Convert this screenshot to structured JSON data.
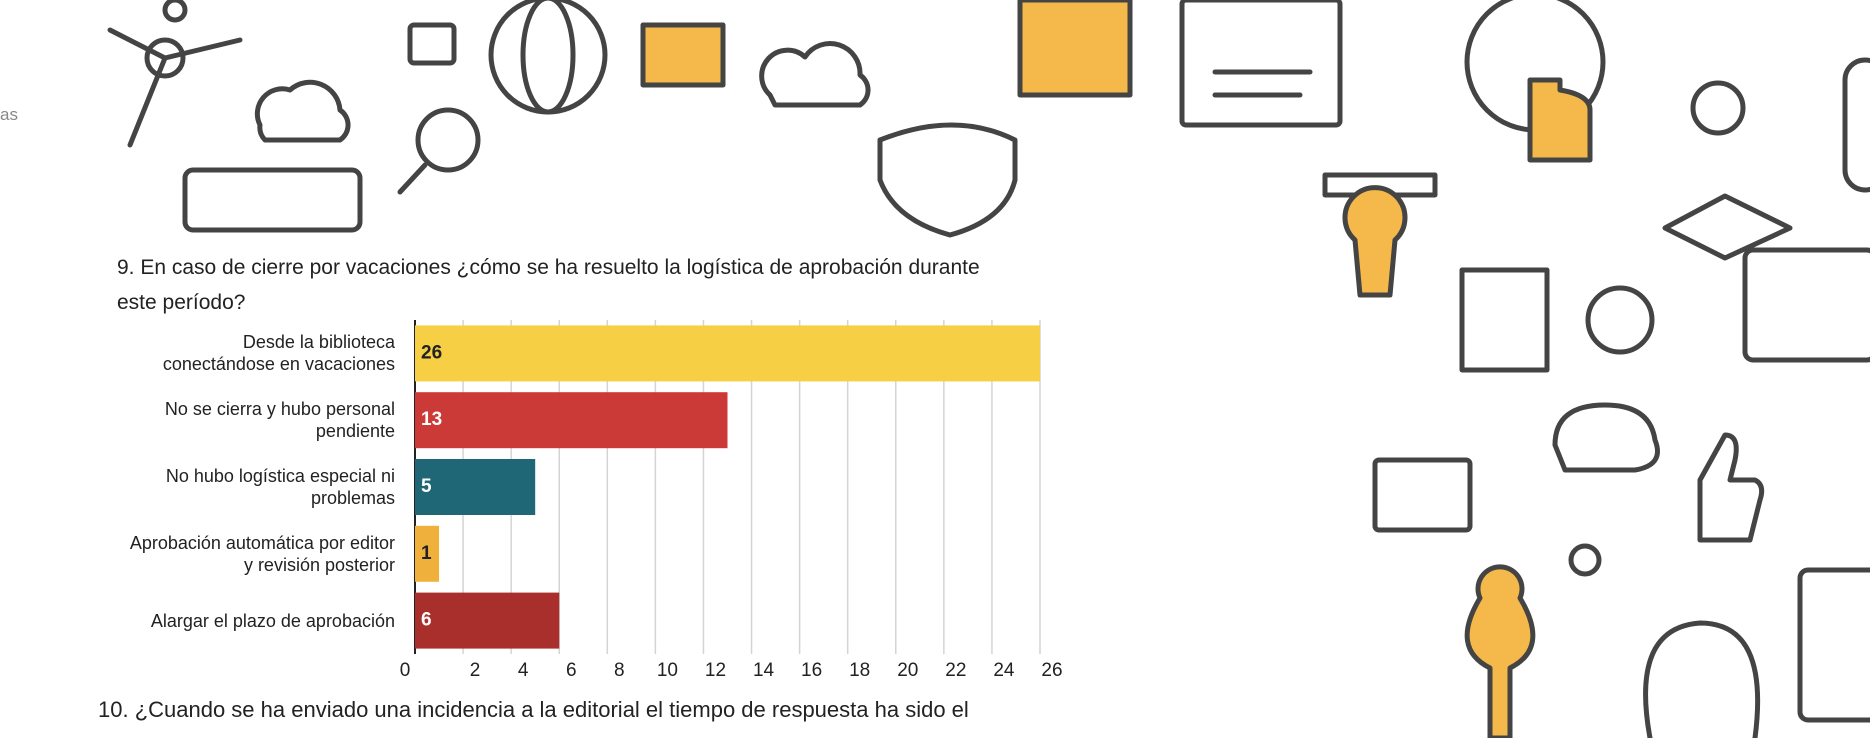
{
  "sidebar_text": "as",
  "chart_data": {
    "type": "bar",
    "orientation": "horizontal",
    "title": "9. En caso de cierre por vacaciones ¿cómo se ha resuelto la logística de aprobación durante\neste período?",
    "categories": [
      "Desde la biblioteca\nconectándose en vacaciones",
      "No se cierra y hubo personal\npendiente",
      "No hubo logística especial ni\nproblemas",
      "Aprobación automática por editor\ny revisión posterior",
      "Alargar el plazo de aprobación"
    ],
    "values": [
      26,
      13,
      5,
      1,
      6
    ],
    "colors": [
      "#f6cf45",
      "#cc3a37",
      "#1f6677",
      "#f0b13c",
      "#a92f2c"
    ],
    "label_colors": [
      "#222222",
      "#ffffff",
      "#ffffff",
      "#222222",
      "#ffffff"
    ],
    "xlim": [
      0,
      26
    ],
    "xticks": [
      0,
      2,
      4,
      6,
      8,
      10,
      12,
      14,
      16,
      18,
      20,
      22,
      24,
      26
    ],
    "grid": true
  },
  "next_question": "10. ¿Cuando se ha enviado una incidencia a la editorial el tiempo de respuesta ha sido el"
}
